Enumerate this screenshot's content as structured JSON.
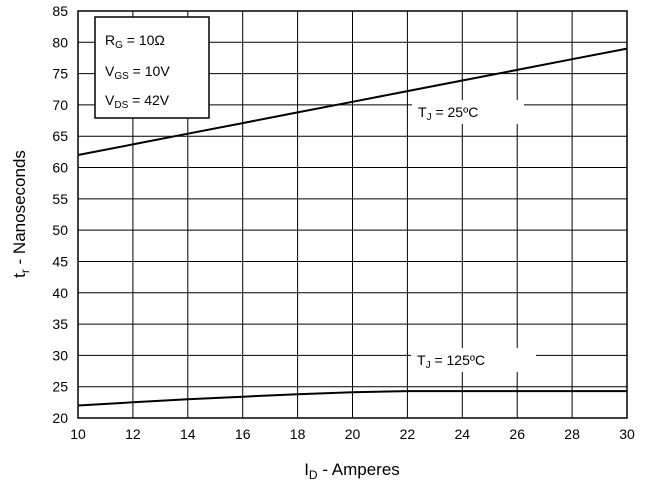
{
  "chart_data": {
    "type": "line",
    "xlabel": {
      "main": "I",
      "sub": "D",
      "rest": " - Amperes"
    },
    "ylabel": {
      "main": "t",
      "sub": "r",
      "rest": " - Nanoseconds"
    },
    "xlim": [
      10,
      30
    ],
    "ylim": [
      20,
      85
    ],
    "xticks": [
      10,
      12,
      14,
      16,
      18,
      20,
      22,
      24,
      26,
      28,
      30
    ],
    "yticks": [
      20,
      25,
      30,
      35,
      40,
      45,
      50,
      55,
      60,
      65,
      70,
      75,
      80,
      85
    ],
    "grid": true,
    "conditions": [
      {
        "main": "R",
        "sub": "G",
        "rest": " = 10Ω"
      },
      {
        "main": "V",
        "sub": "GS",
        "rest": " = 10V"
      },
      {
        "main": "V",
        "sub": "DS",
        "rest": " = 42V"
      }
    ],
    "series": [
      {
        "label": {
          "main": "T",
          "sub": "J",
          "rest": " = 25ºC"
        },
        "x": [
          10,
          12,
          14,
          16,
          18,
          20,
          22,
          24,
          26,
          28,
          30
        ],
        "y": [
          62,
          63.7,
          65.4,
          67.1,
          68.8,
          70.5,
          72.2,
          73.9,
          75.6,
          77.3,
          79
        ]
      },
      {
        "label": {
          "main": "T",
          "sub": "J",
          "rest": " = 125ºC"
        },
        "x": [
          10,
          12,
          14,
          16,
          18,
          20,
          22,
          24,
          26,
          28,
          30
        ],
        "y": [
          22,
          22.5,
          23,
          23.4,
          23.8,
          24.1,
          24.3,
          24.3,
          24.3,
          24.3,
          24.3
        ]
      }
    ]
  }
}
